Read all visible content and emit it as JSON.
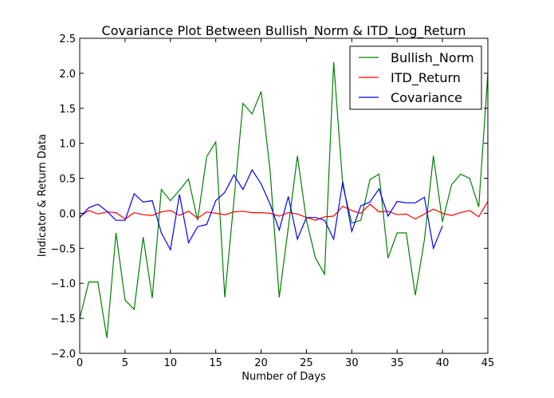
{
  "chart_data": {
    "type": "line",
    "title": "Covariance Plot Between Bullish_Norm & ITD_Log_Return",
    "xlabel": "Number of Days",
    "ylabel": "Indicator & Return Data",
    "xlim": [
      0,
      45
    ],
    "ylim": [
      -2.0,
      2.5
    ],
    "xticks": [
      0,
      5,
      10,
      15,
      20,
      25,
      30,
      35,
      40,
      45
    ],
    "yticks": [
      -2.0,
      -1.5,
      -1.0,
      -0.5,
      0.0,
      0.5,
      1.0,
      1.5,
      2.0,
      2.5
    ],
    "grid": false,
    "legend": "top-right",
    "series": [
      {
        "name": "Bullish_Norm",
        "color": "#008000",
        "values": [
          -1.5,
          -0.98,
          -0.98,
          -1.78,
          -0.28,
          -1.24,
          -1.37,
          -0.34,
          -1.21,
          0.34,
          0.18,
          0.33,
          0.49,
          -0.1,
          0.81,
          1.02,
          -1.2,
          0.17,
          1.57,
          1.42,
          1.74,
          0.6,
          -1.2,
          -0.2,
          0.82,
          -0.1,
          -0.64,
          -0.87,
          2.16,
          0.4,
          -0.14,
          -0.1,
          0.48,
          0.56,
          -0.64,
          -0.28,
          -0.28,
          -1.17,
          -0.38,
          0.82,
          -0.12,
          0.41,
          0.56,
          0.5,
          0.09,
          2.0
        ]
      },
      {
        "name": "ITD_Return",
        "color": "#ff0000",
        "values": [
          -0.05,
          0.04,
          -0.01,
          0.02,
          0.01,
          -0.08,
          0.01,
          -0.02,
          -0.03,
          0.02,
          0.04,
          -0.03,
          0.03,
          -0.07,
          0.02,
          0.0,
          -0.02,
          0.02,
          0.03,
          0.01,
          0.01,
          0.0,
          -0.04,
          0.01,
          -0.01,
          -0.06,
          -0.1,
          -0.05,
          -0.04,
          0.1,
          0.04,
          0.0,
          0.13,
          0.02,
          0.03,
          -0.02,
          -0.01,
          -0.08,
          -0.01,
          0.06,
          0.0,
          -0.03,
          0.01,
          0.04,
          -0.05,
          0.17
        ]
      },
      {
        "name": "Covariance",
        "color": "#0000ff",
        "values": [
          -0.06,
          0.08,
          0.13,
          0.03,
          -0.1,
          -0.1,
          0.28,
          0.16,
          0.18,
          -0.28,
          -0.52,
          0.27,
          -0.42,
          -0.19,
          -0.16,
          0.18,
          0.3,
          0.55,
          0.34,
          0.62,
          0.42,
          0.13,
          -0.24,
          0.24,
          -0.37,
          -0.06,
          -0.06,
          -0.1,
          -0.37,
          0.45,
          -0.26,
          0.11,
          0.16,
          0.35,
          -0.04,
          0.17,
          0.15,
          0.15,
          0.23,
          -0.5,
          -0.18
        ]
      }
    ]
  }
}
